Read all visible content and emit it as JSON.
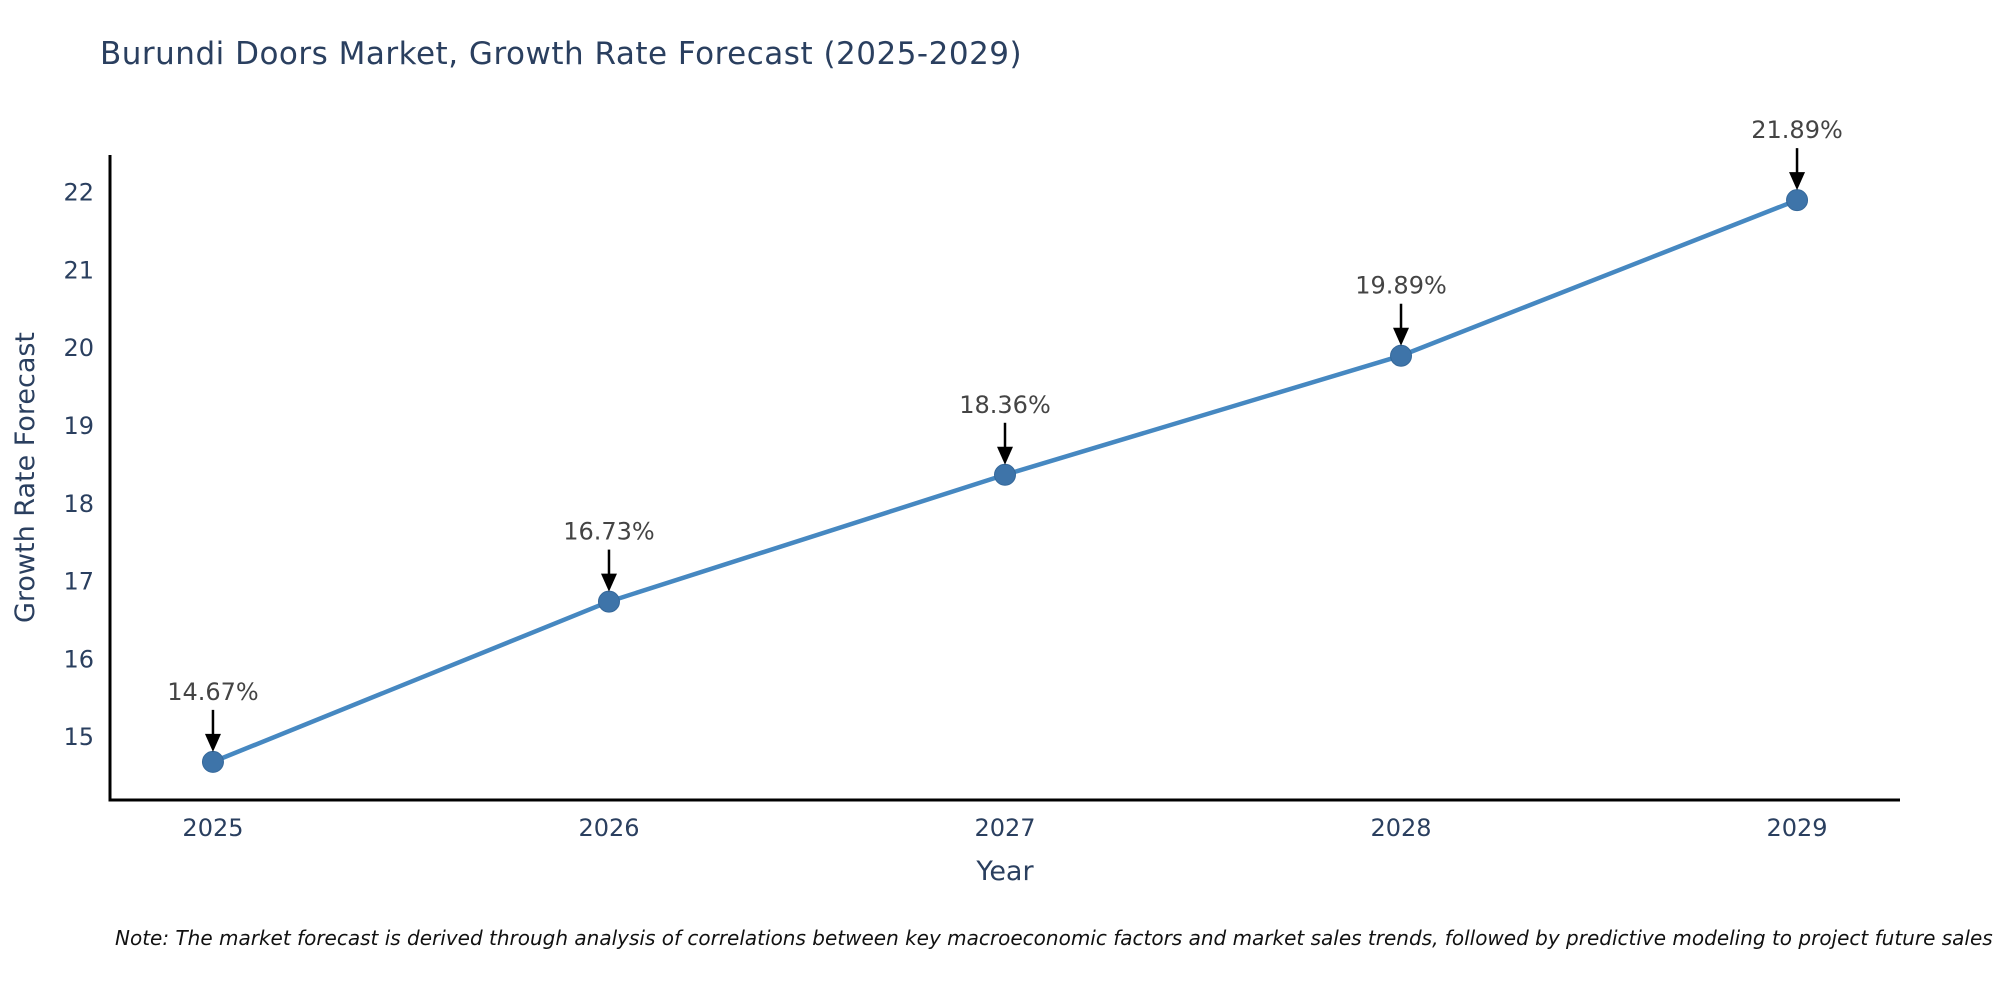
{
  "title": {
    "text": "Burundi Doors Market, Growth Rate Forecast (2025-2029)",
    "color": "#2a3f5f"
  },
  "note": {
    "text": "Note: The market forecast is derived through analysis of correlations between key macroeconomic factors and market sales trends, followed by predictive modeling to project future sales"
  },
  "chart_data": {
    "type": "line",
    "title": "Burundi Doors Market, Growth Rate Forecast (2025-2029)",
    "xlabel": "Year",
    "ylabel": "Growth Rate Forecast",
    "x": [
      2025,
      2026,
      2027,
      2028,
      2029
    ],
    "values": [
      14.67,
      16.73,
      18.36,
      19.89,
      21.89
    ],
    "point_labels": [
      "14.67%",
      "16.73%",
      "18.36%",
      "19.89%",
      "21.89%"
    ],
    "xticks": [
      2025,
      2026,
      2027,
      2028,
      2029
    ],
    "yticks": [
      15,
      16,
      17,
      18,
      19,
      20,
      21,
      22
    ],
    "xlim": [
      2024.74,
      2029.26
    ],
    "ylim": [
      14.18,
      22.47
    ],
    "grid": false,
    "legend": "none",
    "colors": {
      "line": "#4688c1",
      "marker": "#3e74a9",
      "marker_edge": "#35689a",
      "axis": "#000000",
      "tick_label": "#2a3f5f",
      "axis_title": "#2a3f5f",
      "annotation_text": "#444444",
      "arrow": "#000000"
    }
  }
}
